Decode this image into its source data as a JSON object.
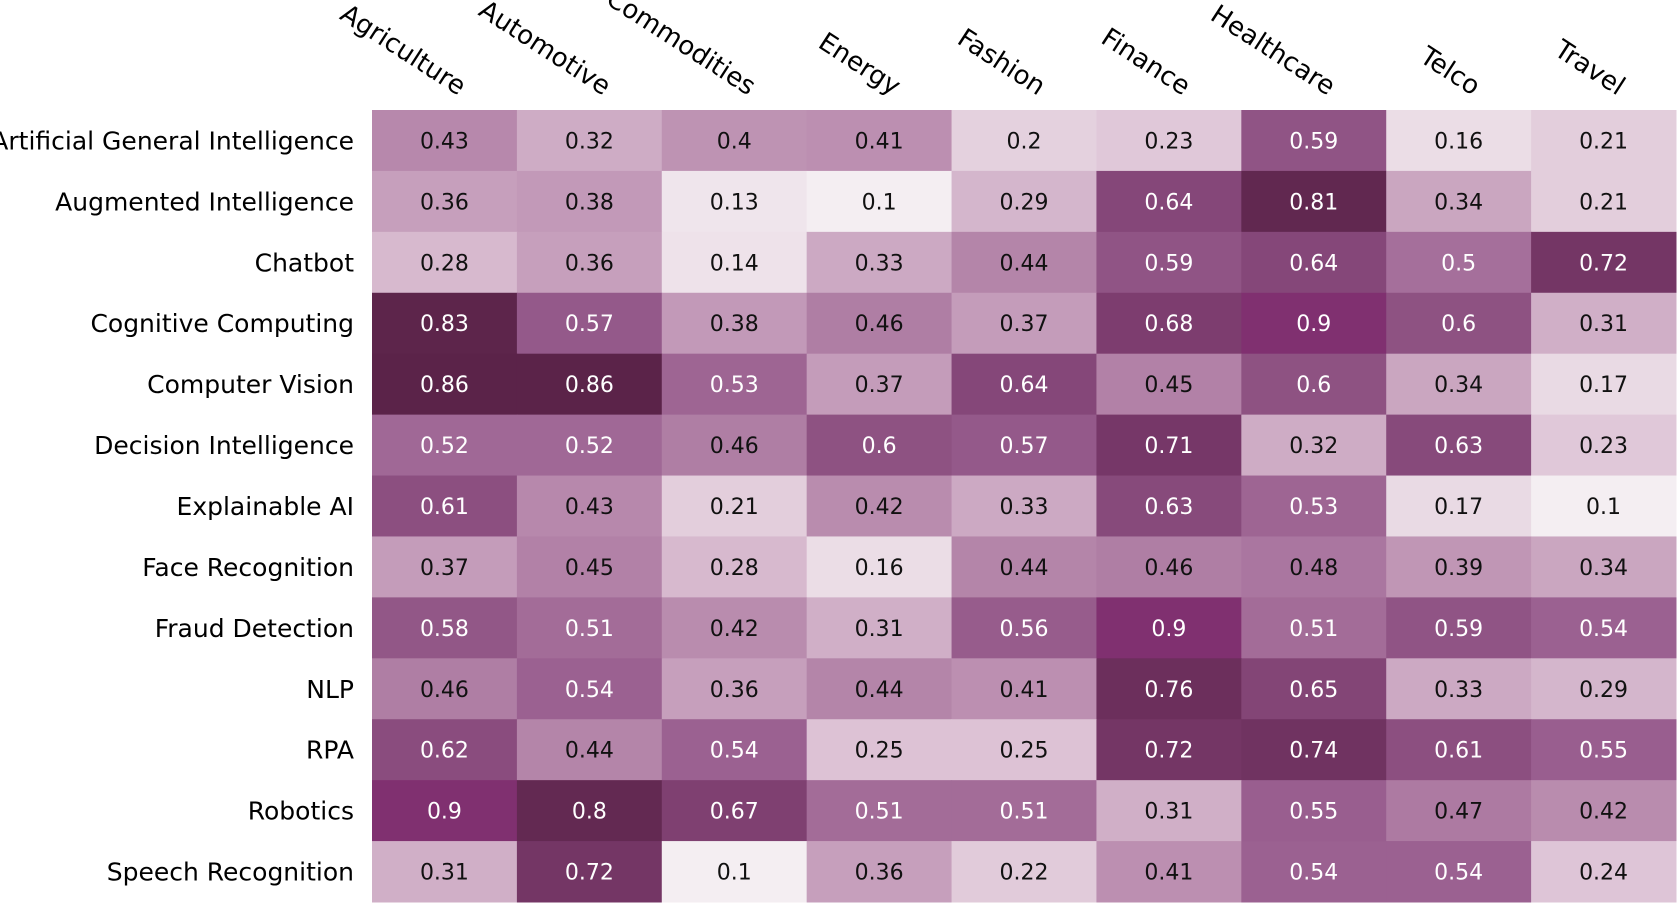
{
  "chart_data": {
    "type": "heatmap",
    "columns": [
      "Agriculture",
      "Automotive",
      "Commodities",
      "Energy",
      "Fashion",
      "Finance",
      "Healthcare",
      "Telco",
      "Travel"
    ],
    "rows": [
      "Artificial General Intelligence",
      "Augmented Intelligence",
      "Chatbot",
      "Cognitive Computing",
      "Computer Vision",
      "Decision Intelligence",
      "Explainable AI",
      "Face Recognition",
      "Fraud Detection",
      "NLP",
      "RPA",
      "Robotics",
      "Speech Recognition"
    ],
    "values": [
      [
        0.43,
        0.32,
        0.4,
        0.41,
        0.2,
        0.23,
        0.59,
        0.16,
        0.21
      ],
      [
        0.36,
        0.38,
        0.13,
        0.1,
        0.29,
        0.64,
        0.81,
        0.34,
        0.21
      ],
      [
        0.28,
        0.36,
        0.14,
        0.33,
        0.44,
        0.59,
        0.64,
        0.5,
        0.72
      ],
      [
        0.83,
        0.57,
        0.38,
        0.46,
        0.37,
        0.68,
        0.9,
        0.6,
        0.31
      ],
      [
        0.86,
        0.86,
        0.53,
        0.37,
        0.64,
        0.45,
        0.6,
        0.34,
        0.17
      ],
      [
        0.52,
        0.52,
        0.46,
        0.6,
        0.57,
        0.71,
        0.32,
        0.63,
        0.23
      ],
      [
        0.61,
        0.43,
        0.21,
        0.42,
        0.33,
        0.63,
        0.53,
        0.17,
        0.1
      ],
      [
        0.37,
        0.45,
        0.28,
        0.16,
        0.44,
        0.46,
        0.48,
        0.39,
        0.34
      ],
      [
        0.58,
        0.51,
        0.42,
        0.31,
        0.56,
        0.9,
        0.51,
        0.59,
        0.54
      ],
      [
        0.46,
        0.54,
        0.36,
        0.44,
        0.41,
        0.76,
        0.65,
        0.33,
        0.29
      ],
      [
        0.62,
        0.44,
        0.54,
        0.25,
        0.25,
        0.72,
        0.74,
        0.61,
        0.55
      ],
      [
        0.9,
        0.8,
        0.67,
        0.51,
        0.51,
        0.31,
        0.55,
        0.47,
        0.42
      ],
      [
        0.31,
        0.72,
        0.1,
        0.36,
        0.22,
        0.41,
        0.54,
        0.54,
        0.24
      ]
    ],
    "value_range": [
      0.1,
      0.9
    ],
    "colormap": [
      "#f4eef2",
      "#ddc3d5",
      "#bf94b4",
      "#9a6090",
      "#7a3a6c",
      "#5b2349",
      "#803070"
    ],
    "label_colors": {
      "dark_cell": "#ffffff",
      "light_cell": "#111111"
    },
    "legend": "none",
    "grid": false
  }
}
